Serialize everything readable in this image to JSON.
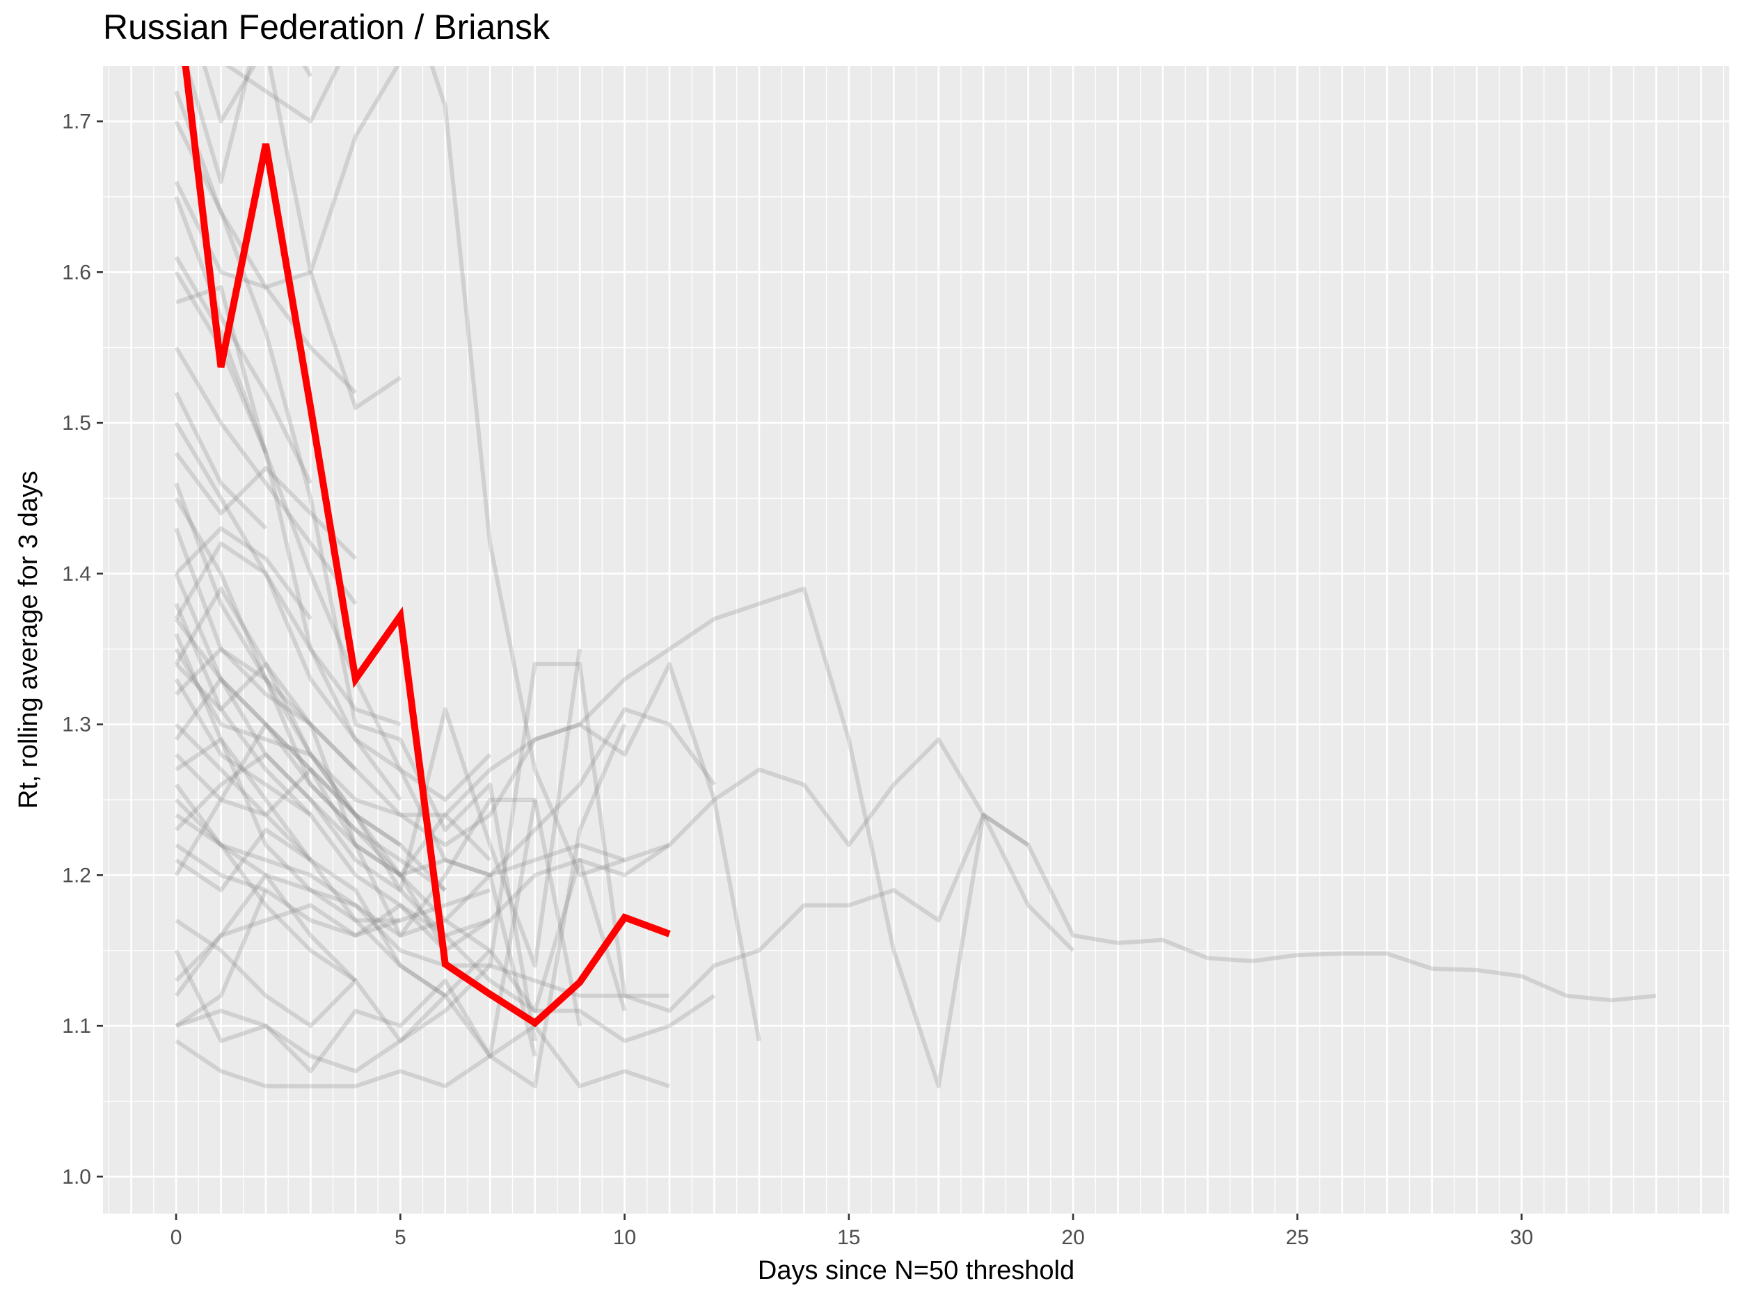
{
  "chart_data": {
    "type": "line",
    "title": "Russian Federation / Briansk",
    "xlabel": "Days since N=50 threshold",
    "ylabel": "Rt, rolling average for 3 days",
    "xlim": [
      -1.63,
      34.63
    ],
    "ylim": [
      0.9755,
      1.7367
    ],
    "x_ticks": [
      0,
      5,
      10,
      15,
      20,
      25,
      30
    ],
    "y_ticks": [
      1.0,
      1.1,
      1.2,
      1.3,
      1.4,
      1.5,
      1.6,
      1.7
    ],
    "grid": true,
    "highlight_color": "#ff0000",
    "background_color": "#ebebeb",
    "other_series_color": "#7f7f7f",
    "highlight_series": {
      "x": [
        0,
        1,
        2,
        3,
        4,
        5,
        6,
        7,
        8,
        9,
        10,
        11
      ],
      "y": [
        1.79,
        1.537,
        1.685,
        1.51,
        1.33,
        1.372,
        1.141,
        1.121,
        1.102,
        1.129,
        1.172,
        1.161
      ]
    },
    "other_series": [
      {
        "x": [
          0,
          1,
          2,
          3,
          4,
          5,
          6,
          7,
          8,
          9,
          10,
          11,
          12,
          13,
          14,
          15,
          16,
          17,
          18,
          19,
          20,
          21,
          22,
          23,
          24,
          25,
          26,
          27,
          28,
          29,
          30,
          31,
          32,
          33
        ],
        "y": [
          1.28,
          1.25,
          1.24,
          1.27,
          1.22,
          1.2,
          1.24,
          1.27,
          1.29,
          1.3,
          1.33,
          1.35,
          1.37,
          1.38,
          1.39,
          1.29,
          1.15,
          1.06,
          1.24,
          1.22,
          1.16,
          1.155,
          1.157,
          1.145,
          1.143,
          1.147,
          1.148,
          1.148,
          1.138,
          1.137,
          1.133,
          1.12,
          1.117,
          1.12
        ]
      },
      {
        "x": [
          0,
          1,
          2,
          3,
          4,
          5,
          6,
          7,
          8,
          9,
          10,
          11,
          12,
          13,
          14,
          15,
          16,
          17,
          18,
          19,
          20
        ],
        "y": [
          1.22,
          1.2,
          1.19,
          1.17,
          1.16,
          1.18,
          1.15,
          1.17,
          1.2,
          1.21,
          1.2,
          1.22,
          1.25,
          1.27,
          1.26,
          1.22,
          1.26,
          1.29,
          1.24,
          1.18,
          1.15
        ]
      },
      {
        "x": [
          0,
          1,
          2,
          3,
          4,
          5,
          6,
          7,
          8,
          9,
          10,
          11,
          12,
          13,
          14,
          15,
          16,
          17,
          18,
          19
        ],
        "y": [
          1.25,
          1.22,
          1.21,
          1.2,
          1.18,
          1.15,
          1.14,
          1.14,
          1.13,
          1.12,
          1.12,
          1.11,
          1.14,
          1.15,
          1.18,
          1.18,
          1.19,
          1.17,
          1.24,
          1.22
        ]
      },
      {
        "x": [
          0,
          1,
          2,
          3,
          4,
          5,
          6,
          7,
          8,
          9,
          10,
          11,
          12,
          13
        ],
        "y": [
          1.35,
          1.3,
          1.29,
          1.28,
          1.25,
          1.24,
          1.22,
          1.24,
          1.29,
          1.3,
          1.28,
          1.34,
          1.25,
          1.09
        ]
      },
      {
        "x": [
          0,
          1,
          2,
          3,
          4,
          5,
          6,
          7,
          8,
          9,
          10,
          11,
          12
        ],
        "y": [
          1.46,
          1.38,
          1.33,
          1.28,
          1.24,
          1.2,
          1.21,
          1.2,
          1.23,
          1.26,
          1.31,
          1.3,
          1.26
        ]
      },
      {
        "x": [
          0,
          1,
          2,
          3,
          4,
          5,
          6,
          7,
          8,
          9,
          10,
          11
        ],
        "y": [
          1.61,
          1.56,
          1.48,
          1.4,
          1.33,
          1.27,
          1.21,
          1.2,
          1.21,
          1.22,
          1.21,
          1.22
        ]
      },
      {
        "x": [
          0,
          1,
          2,
          3,
          4,
          5,
          6,
          7,
          8,
          9,
          10,
          11,
          12
        ],
        "y": [
          1.37,
          1.33,
          1.3,
          1.27,
          1.24,
          1.19,
          1.16,
          1.13,
          1.11,
          1.11,
          1.09,
          1.1,
          1.12
        ]
      },
      {
        "x": [
          0,
          1,
          2,
          3,
          4,
          5,
          6,
          7,
          8,
          9,
          10,
          11
        ],
        "y": [
          1.1,
          1.11,
          1.1,
          1.08,
          1.07,
          1.09,
          1.11,
          1.14,
          1.34,
          1.34,
          1.12,
          1.12
        ]
      },
      {
        "x": [
          0,
          1,
          2,
          3,
          4,
          5,
          6,
          7,
          8,
          9,
          10,
          11
        ],
        "y": [
          1.09,
          1.07,
          1.06,
          1.06,
          1.06,
          1.07,
          1.06,
          1.08,
          1.1,
          1.06,
          1.07,
          1.06
        ]
      },
      {
        "x": [
          0,
          1,
          2,
          3,
          4,
          5,
          6,
          7,
          8,
          9,
          10
        ],
        "y": [
          1.17,
          1.15,
          1.12,
          1.1,
          1.13,
          1.09,
          1.12,
          1.08,
          1.06,
          1.23,
          1.3
        ]
      },
      {
        "x": [
          0,
          1,
          2,
          3,
          4,
          5,
          6,
          7,
          8,
          9,
          10
        ],
        "y": [
          1.24,
          1.22,
          1.2,
          1.19,
          1.18,
          1.16,
          1.17,
          1.15,
          1.11,
          1.21,
          1.11
        ]
      },
      {
        "x": [
          0,
          1,
          2,
          3,
          4,
          5,
          6,
          7,
          8,
          9
        ],
        "y": [
          1.4,
          1.33,
          1.28,
          1.25,
          1.21,
          1.19,
          1.31,
          1.22,
          1.14,
          1.35
        ]
      },
      {
        "x": [
          0,
          1,
          2,
          3,
          4,
          5,
          6,
          7,
          8,
          9
        ],
        "y": [
          1.32,
          1.35,
          1.33,
          1.3,
          1.22,
          1.16,
          1.2,
          1.25,
          1.25,
          1.1
        ]
      },
      {
        "x": [
          0,
          1,
          2,
          3,
          4,
          5,
          6,
          7,
          8
        ],
        "y": [
          1.72,
          1.64,
          1.56,
          1.45,
          1.3,
          1.29,
          1.23,
          1.26,
          1.09
        ]
      },
      {
        "x": [
          0,
          1,
          2,
          3,
          4,
          5,
          6,
          7,
          8
        ],
        "y": [
          1.2,
          1.25,
          1.3,
          1.26,
          1.23,
          1.2,
          1.17,
          1.2,
          1.08
        ]
      },
      {
        "x": [
          0,
          1,
          2,
          3,
          4,
          5,
          6,
          7,
          8
        ],
        "y": [
          1.15,
          1.09,
          1.1,
          1.07,
          1.11,
          1.1,
          1.13,
          1.08,
          1.25
        ]
      },
      {
        "x": [
          0,
          1,
          2,
          3,
          4,
          5,
          6,
          7
        ],
        "y": [
          1.36,
          1.29,
          1.25,
          1.21,
          1.17,
          1.17,
          1.18,
          1.19
        ]
      },
      {
        "x": [
          0,
          1,
          2,
          3,
          4,
          5,
          6,
          7
        ],
        "y": [
          1.43,
          1.35,
          1.32,
          1.3,
          1.27,
          1.24,
          1.24,
          1.21
        ]
      },
      {
        "x": [
          0,
          1,
          2,
          3,
          4,
          5,
          6,
          7
        ],
        "y": [
          1.5,
          1.45,
          1.4,
          1.33,
          1.29,
          1.27,
          1.25,
          1.28
        ]
      },
      {
        "x": [
          0,
          1,
          2,
          3,
          4,
          5,
          6,
          7
        ],
        "y": [
          1.27,
          1.29,
          1.22,
          1.19,
          1.17,
          1.14,
          1.12,
          1.15
        ]
      },
      {
        "x": [
          0,
          1,
          2,
          3,
          4,
          5,
          6,
          7
        ],
        "y": [
          1.38,
          1.31,
          1.27,
          1.24,
          1.2,
          1.18,
          1.16,
          1.17
        ]
      },
      {
        "x": [
          0,
          1,
          2,
          3,
          4,
          5,
          6
        ],
        "y": [
          1.45,
          1.4,
          1.33,
          1.26,
          1.23,
          1.21,
          1.19
        ]
      },
      {
        "x": [
          0,
          1,
          2,
          3,
          4,
          5,
          6
        ],
        "y": [
          1.23,
          1.26,
          1.28,
          1.25,
          1.22,
          1.2,
          1.15
        ]
      },
      {
        "x": [
          0,
          1,
          2,
          3,
          4,
          5,
          6
        ],
        "y": [
          1.3,
          1.27,
          1.24,
          1.21,
          1.19,
          1.14,
          1.12
        ]
      },
      {
        "x": [
          0,
          1,
          2,
          3,
          4,
          5,
          6
        ],
        "y": [
          1.34,
          1.39,
          1.34,
          1.28,
          1.24,
          1.22,
          1.19
        ]
      },
      {
        "x": [
          0,
          1,
          2,
          3,
          4,
          5
        ],
        "y": [
          1.66,
          1.6,
          1.59,
          1.6,
          1.51,
          1.53
        ]
      },
      {
        "x": [
          0,
          1,
          2,
          3,
          4,
          5
        ],
        "y": [
          1.58,
          1.59,
          1.48,
          1.35,
          1.31,
          1.3
        ]
      },
      {
        "x": [
          0,
          1,
          2,
          3,
          4,
          5
        ],
        "y": [
          1.37,
          1.42,
          1.4,
          1.35,
          1.29,
          1.25
        ]
      },
      {
        "x": [
          0,
          1,
          2,
          3,
          4,
          5
        ],
        "y": [
          1.29,
          1.33,
          1.3,
          1.27,
          1.24,
          1.22
        ]
      },
      {
        "x": [
          0,
          1,
          2,
          3,
          4,
          5
        ],
        "y": [
          1.12,
          1.16,
          1.17,
          1.18,
          1.16,
          1.17
        ]
      },
      {
        "x": [
          0,
          1,
          2,
          3,
          4
        ],
        "y": [
          1.7,
          1.64,
          1.59,
          1.55,
          1.52
        ]
      },
      {
        "x": [
          0,
          1,
          2,
          3,
          4
        ],
        "y": [
          1.55,
          1.5,
          1.46,
          1.42,
          1.38
        ]
      },
      {
        "x": [
          0,
          1,
          2,
          3,
          4
        ],
        "y": [
          1.48,
          1.44,
          1.47,
          1.44,
          1.41
        ]
      },
      {
        "x": [
          0,
          1,
          2,
          3,
          4
        ],
        "y": [
          1.34,
          1.31,
          1.34,
          1.3,
          1.27
        ]
      },
      {
        "x": [
          0,
          1,
          2,
          3,
          4
        ],
        "y": [
          1.26,
          1.22,
          1.18,
          1.15,
          1.13
        ]
      },
      {
        "x": [
          0,
          1,
          2,
          3,
          4
        ],
        "y": [
          1.13,
          1.16,
          1.2,
          1.16,
          1.13
        ]
      },
      {
        "x": [
          0,
          1,
          2,
          3
        ],
        "y": [
          1.65,
          1.57,
          1.52,
          1.46
        ]
      },
      {
        "x": [
          0,
          1,
          2,
          3
        ],
        "y": [
          1.4,
          1.43,
          1.41,
          1.37
        ]
      },
      {
        "x": [
          0,
          1,
          2,
          3
        ],
        "y": [
          1.21,
          1.19,
          1.23,
          1.21
        ]
      },
      {
        "x": [
          0,
          1,
          2,
          3
        ],
        "y": [
          1.33,
          1.28,
          1.26,
          1.24
        ]
      },
      {
        "x": [
          0,
          1,
          2
        ],
        "y": [
          1.6,
          1.55,
          1.48
        ]
      },
      {
        "x": [
          0,
          1,
          2
        ],
        "y": [
          1.52,
          1.46,
          1.43
        ]
      },
      {
        "x": [
          0,
          1,
          2
        ],
        "y": [
          1.1,
          1.12,
          1.19
        ]
      },
      {
        "x": [
          0,
          1,
          2,
          3,
          4,
          5,
          6,
          7,
          8,
          9,
          10
        ],
        "y": [
          1.8,
          1.74,
          1.72,
          1.7,
          1.76,
          1.8,
          1.71,
          1.42,
          1.27,
          1.2,
          1.21
        ]
      },
      {
        "x": [
          0,
          1,
          2,
          3,
          4,
          5
        ],
        "y": [
          1.8,
          1.7,
          1.75,
          1.6,
          1.69,
          1.74
        ]
      },
      {
        "x": [
          0,
          1,
          2,
          3
        ],
        "y": [
          1.76,
          1.66,
          1.78,
          1.73
        ]
      }
    ]
  }
}
